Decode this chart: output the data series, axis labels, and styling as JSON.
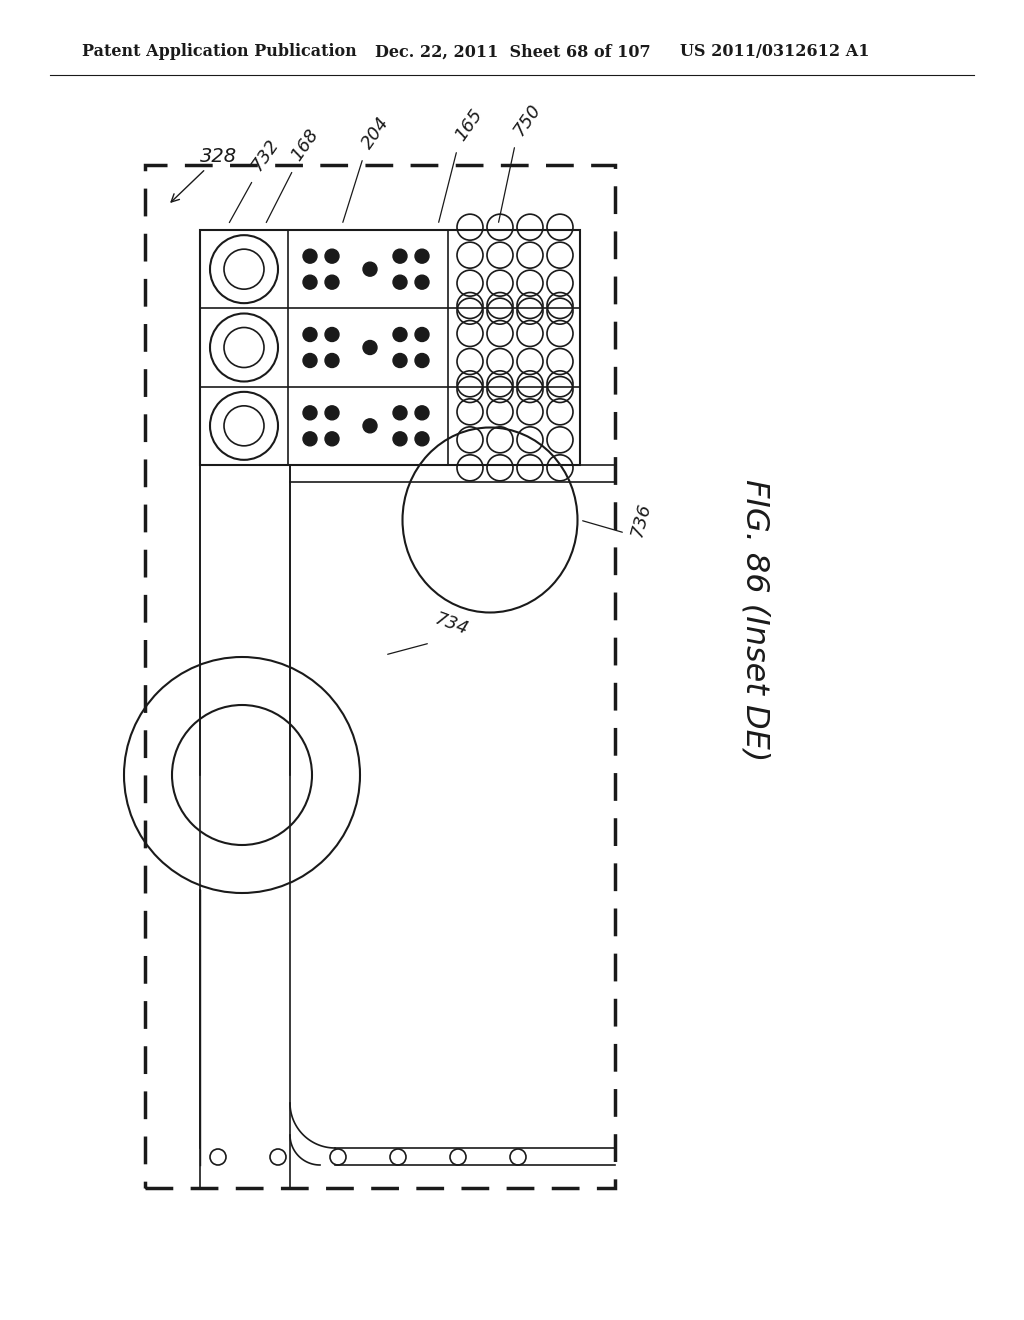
{
  "header_left": "Patent Application Publication",
  "header_mid": "Dec. 22, 2011  Sheet 68 of 107",
  "header_right": "US 2011/0312612 A1",
  "fig_label": "FIG. 86 (Inset DE)",
  "bg_color": "#ffffff",
  "line_color": "#1a1a1a"
}
